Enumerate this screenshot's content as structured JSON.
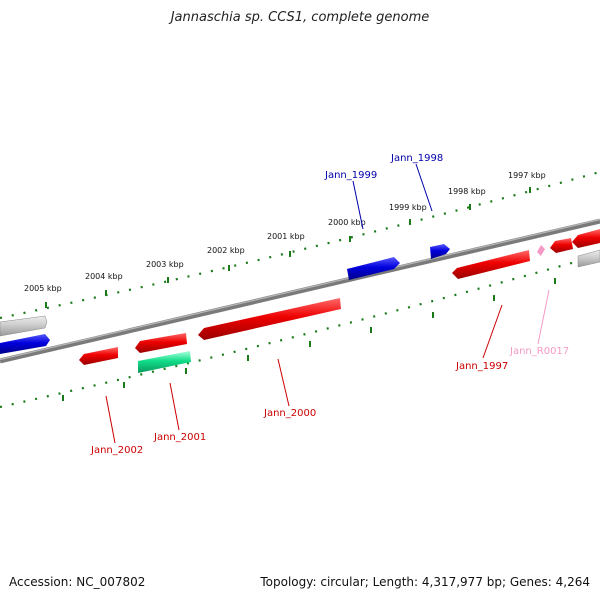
{
  "title": "Jannaschia sp. CCS1, complete genome",
  "footer": {
    "accession": "Accession: NC_007802",
    "summary": "Topology: circular; Length: 4,317,977 bp; Genes: 4,264"
  },
  "kbp_labels": [
    "2005 kbp",
    "2004 kbp",
    "2003 kbp",
    "2002 kbp",
    "2001 kbp",
    "2000 kbp",
    "1999 kbp",
    "1998 kbp",
    "1997 kbp"
  ],
  "gene_labels": {
    "jann_1999": "Jann_1999",
    "jann_1998": "Jann_1998",
    "jann_1997": "Jann_1997",
    "jann_r0017": "Jann_R0017",
    "jann_2000": "Jann_2000",
    "jann_2001": "Jann_2001",
    "jann_2002": "Jann_2002"
  },
  "colors": {
    "forward_gene": "#0000dd",
    "reverse_gene": "#ee0000",
    "rna_gene": "#f59ac6",
    "other_gene": "#11dd88",
    "backbone": "#7a7a7a",
    "ticks": "#1a7a1a"
  }
}
